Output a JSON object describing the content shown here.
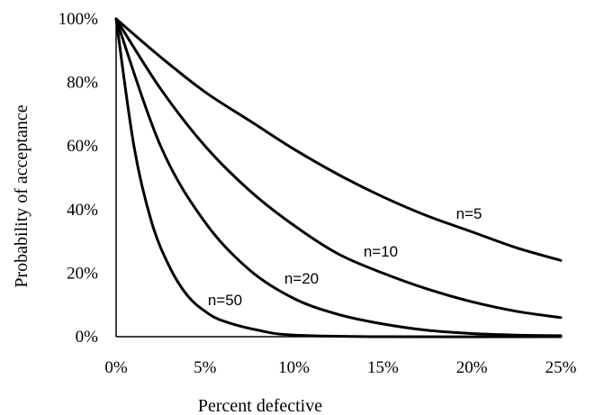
{
  "chart_data": {
    "type": "line",
    "title": "",
    "xlabel": "Percent defective",
    "ylabel": "Probability of acceptance",
    "xlim": [
      0,
      25
    ],
    "ylim": [
      0,
      100
    ],
    "x_ticks": [
      "0%",
      "5%",
      "10%",
      "15%",
      "20%",
      "25%"
    ],
    "y_ticks": [
      "0%",
      "20%",
      "40%",
      "60%",
      "80%",
      "100%"
    ],
    "grid": false,
    "legend": "none",
    "series": [
      {
        "name": "n=5",
        "x": [
          0,
          2.5,
          5,
          7.5,
          10,
          12.5,
          15,
          17.5,
          20,
          22.5,
          25
        ],
        "y": [
          100,
          88,
          77,
          68,
          59,
          51,
          44,
          38,
          33,
          28,
          24
        ]
      },
      {
        "name": "n=10",
        "x": [
          0,
          2.5,
          5,
          7.5,
          10,
          12.5,
          15,
          17.5,
          20,
          22.5,
          25
        ],
        "y": [
          100,
          78,
          60,
          46,
          35,
          26,
          20,
          15,
          11,
          8,
          6
        ]
      },
      {
        "name": "n=20",
        "x": [
          0,
          2.5,
          5,
          7.5,
          10,
          12.5,
          15,
          17.5,
          20,
          22.5,
          25
        ],
        "y": [
          100,
          60,
          36,
          21,
          12,
          7,
          4,
          2,
          1,
          0.5,
          0.3
        ]
      },
      {
        "name": "n=50",
        "x": [
          0,
          1,
          2,
          3,
          4,
          5,
          6,
          8,
          10,
          15,
          25
        ],
        "y": [
          100,
          60,
          36,
          22,
          13,
          8,
          5,
          2,
          0.5,
          0,
          0
        ]
      }
    ]
  }
}
